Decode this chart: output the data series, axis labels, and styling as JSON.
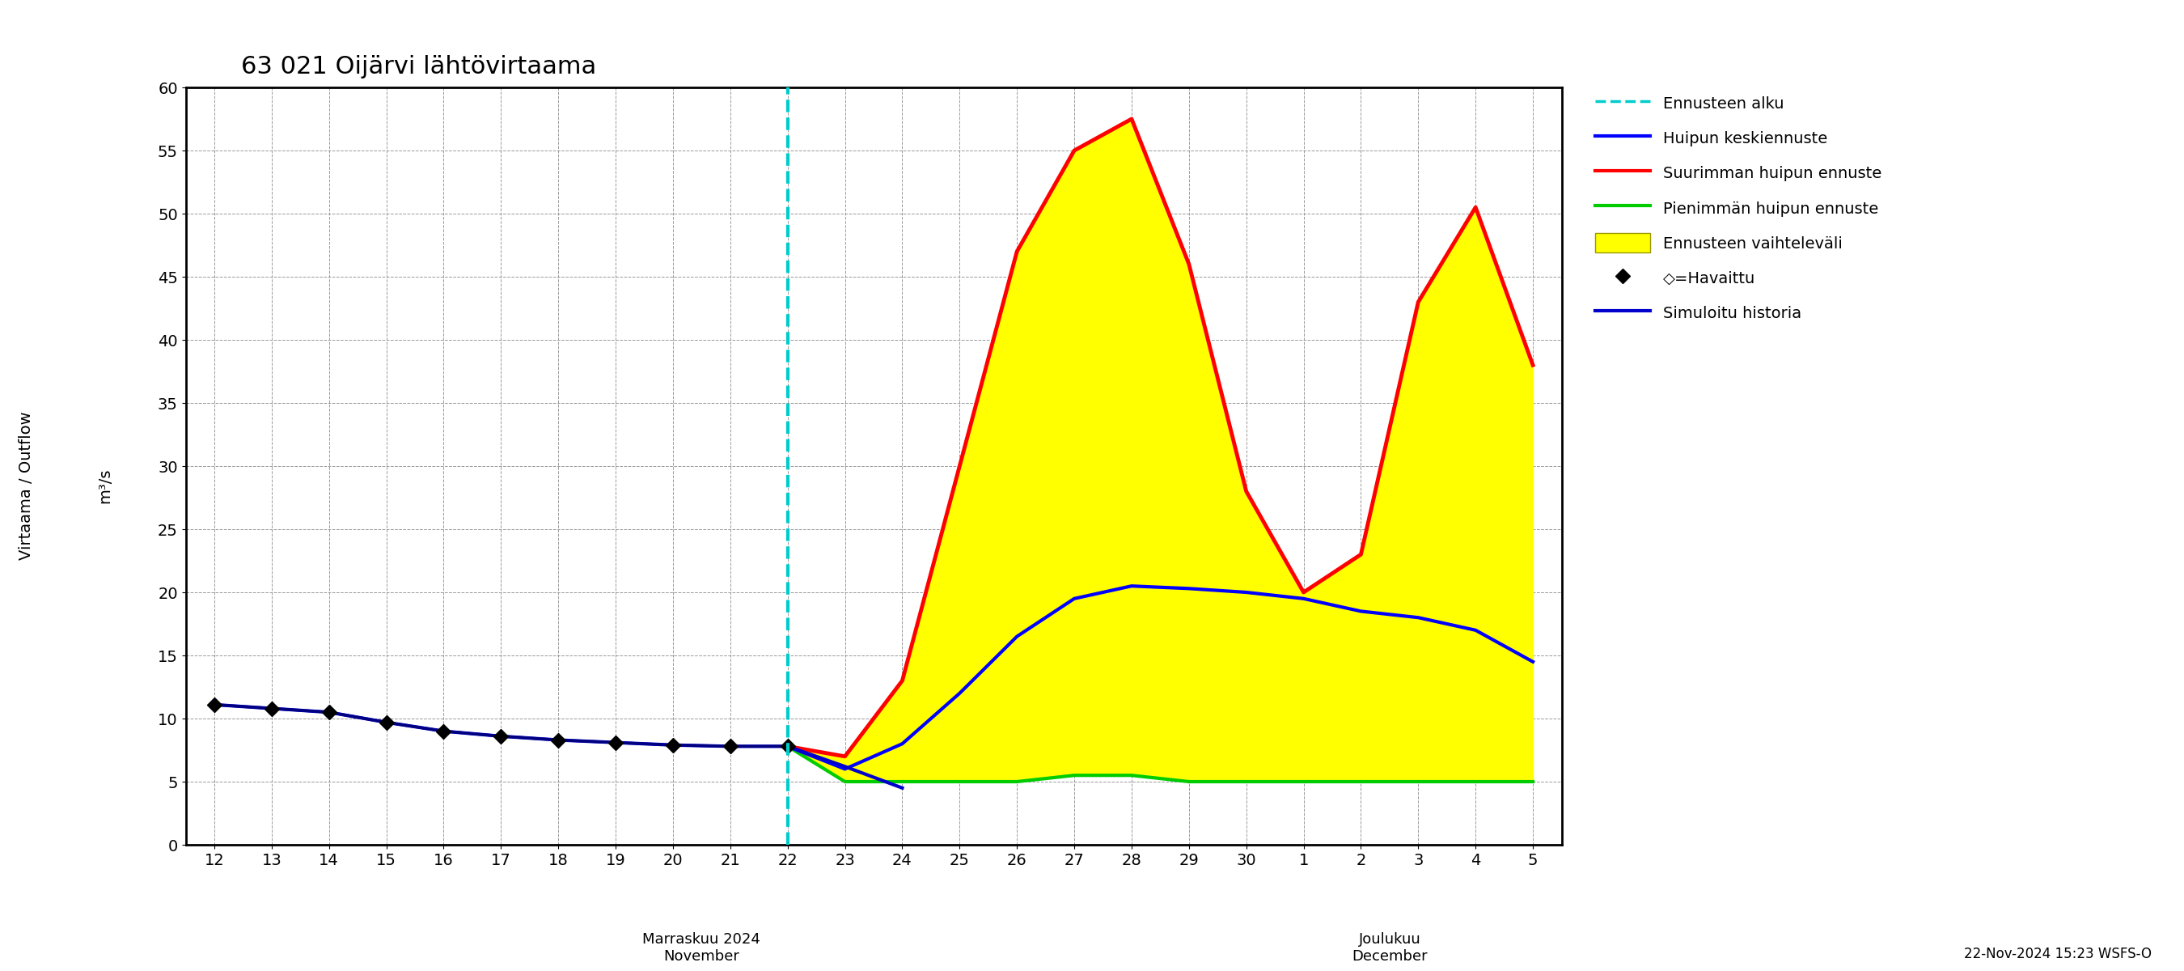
{
  "title": "63 021 Oijärvi lähtövirtaama",
  "ylabel_left": "Virtaama / Outflow",
  "ylabel_right": "m³/s",
  "ylim": [
    0,
    60
  ],
  "yticks": [
    0,
    5,
    10,
    15,
    20,
    25,
    30,
    35,
    40,
    45,
    50,
    55,
    60
  ],
  "watermark": "22-Nov-2024 15:23 WSFS-O",
  "colors": {
    "cyan_dashed": "#00CCCC",
    "mean_forecast": "#0000FF",
    "max_forecast": "#FF0000",
    "min_forecast": "#00CC00",
    "fill_band": "#FFFF00",
    "observed_line": "#000080",
    "observed_marker": "#000000",
    "sim_history": "#0000CC",
    "background": "#FFFFFF",
    "grid": "#999999"
  },
  "legend_labels": [
    "Ennusteen alku",
    "Huipun keskiennuste",
    "Suurimman huipun ennuste",
    "Pienimmän huipun ennuste",
    "Ennusteen vaihteleväli",
    "◇=Havaittu",
    "Simuloitu historia"
  ],
  "nov_label": "Marraskuu 2024\nNovember",
  "dec_label": "Joulukuu\nDecember",
  "observed_nov_days": [
    12,
    13,
    14,
    15,
    16,
    17,
    18,
    19,
    20,
    21,
    22
  ],
  "observed_y": [
    11.1,
    10.8,
    10.5,
    9.7,
    9.0,
    8.6,
    8.3,
    8.1,
    7.9,
    7.8,
    7.8
  ],
  "sim_hist_nov_days": [
    12,
    13,
    14,
    15,
    16,
    17,
    18,
    19,
    20,
    21,
    22,
    23,
    24
  ],
  "sim_hist_y": [
    11.1,
    10.8,
    10.5,
    9.7,
    9.0,
    8.6,
    8.3,
    8.1,
    7.9,
    7.8,
    7.8,
    6.2,
    4.5
  ],
  "fc_nov_days": [
    22,
    23,
    24,
    25,
    26,
    27,
    28,
    29,
    30
  ],
  "fc_dec_days": [
    1,
    2,
    3,
    4,
    5
  ],
  "mean_y_nov": [
    7.8,
    6.0,
    8.0,
    12.0,
    16.5,
    19.5,
    20.5,
    20.3,
    20.0
  ],
  "mean_y_dec": [
    19.5,
    18.5,
    18.0,
    17.0,
    14.5
  ],
  "max_y_nov": [
    7.8,
    7.0,
    13.0,
    30.0,
    47.0,
    55.0,
    57.5,
    46.0,
    28.0
  ],
  "max_y_dec": [
    20.0,
    23.0,
    43.0,
    50.5,
    38.0
  ],
  "min_y_nov": [
    7.8,
    5.0,
    5.0,
    5.0,
    5.0,
    5.5,
    5.5,
    5.0,
    5.0
  ],
  "min_y_dec": [
    5.0,
    5.0,
    5.0,
    5.0,
    5.0
  ]
}
